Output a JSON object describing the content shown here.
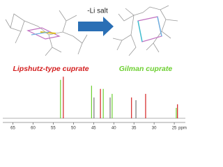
{
  "arrow_label": "-Li salt",
  "left_label": {
    "text": "Lipshutz-type cuprate",
    "color": "#d42020"
  },
  "right_label": {
    "text": "Gilman cuprate",
    "color": "#6ccf30"
  },
  "spectrum": {
    "xlim": [
      68.2,
      21.9
    ],
    "xticks": [
      65,
      60,
      55,
      50,
      45,
      40,
      35,
      30,
      25
    ],
    "unit": "ppm",
    "peaks": [
      {
        "ppm": 53.2,
        "height": 0.85,
        "color": "#6ccf30"
      },
      {
        "ppm": 52.5,
        "height": 0.92,
        "color": "#d42020"
      },
      {
        "ppm": 45.5,
        "height": 0.72,
        "color": "#6ccf30"
      },
      {
        "ppm": 44.9,
        "height": 0.46,
        "color": "#777777"
      },
      {
        "ppm": 43.3,
        "height": 0.65,
        "color": "#d42020"
      },
      {
        "ppm": 42.6,
        "height": 0.65,
        "color": "#6ccf30"
      },
      {
        "ppm": 40.9,
        "height": 0.46,
        "color": "#777777"
      },
      {
        "ppm": 40.4,
        "height": 0.54,
        "color": "#6ccf30"
      },
      {
        "ppm": 35.6,
        "height": 0.46,
        "color": "#d42020"
      },
      {
        "ppm": 34.5,
        "height": 0.4,
        "color": "#777777"
      },
      {
        "ppm": 32.1,
        "height": 0.54,
        "color": "#d42020"
      },
      {
        "ppm": 24.5,
        "height": 0.23,
        "color": "#6ccf30"
      },
      {
        "ppm": 24.2,
        "height": 0.31,
        "color": "#d42020"
      }
    ]
  }
}
